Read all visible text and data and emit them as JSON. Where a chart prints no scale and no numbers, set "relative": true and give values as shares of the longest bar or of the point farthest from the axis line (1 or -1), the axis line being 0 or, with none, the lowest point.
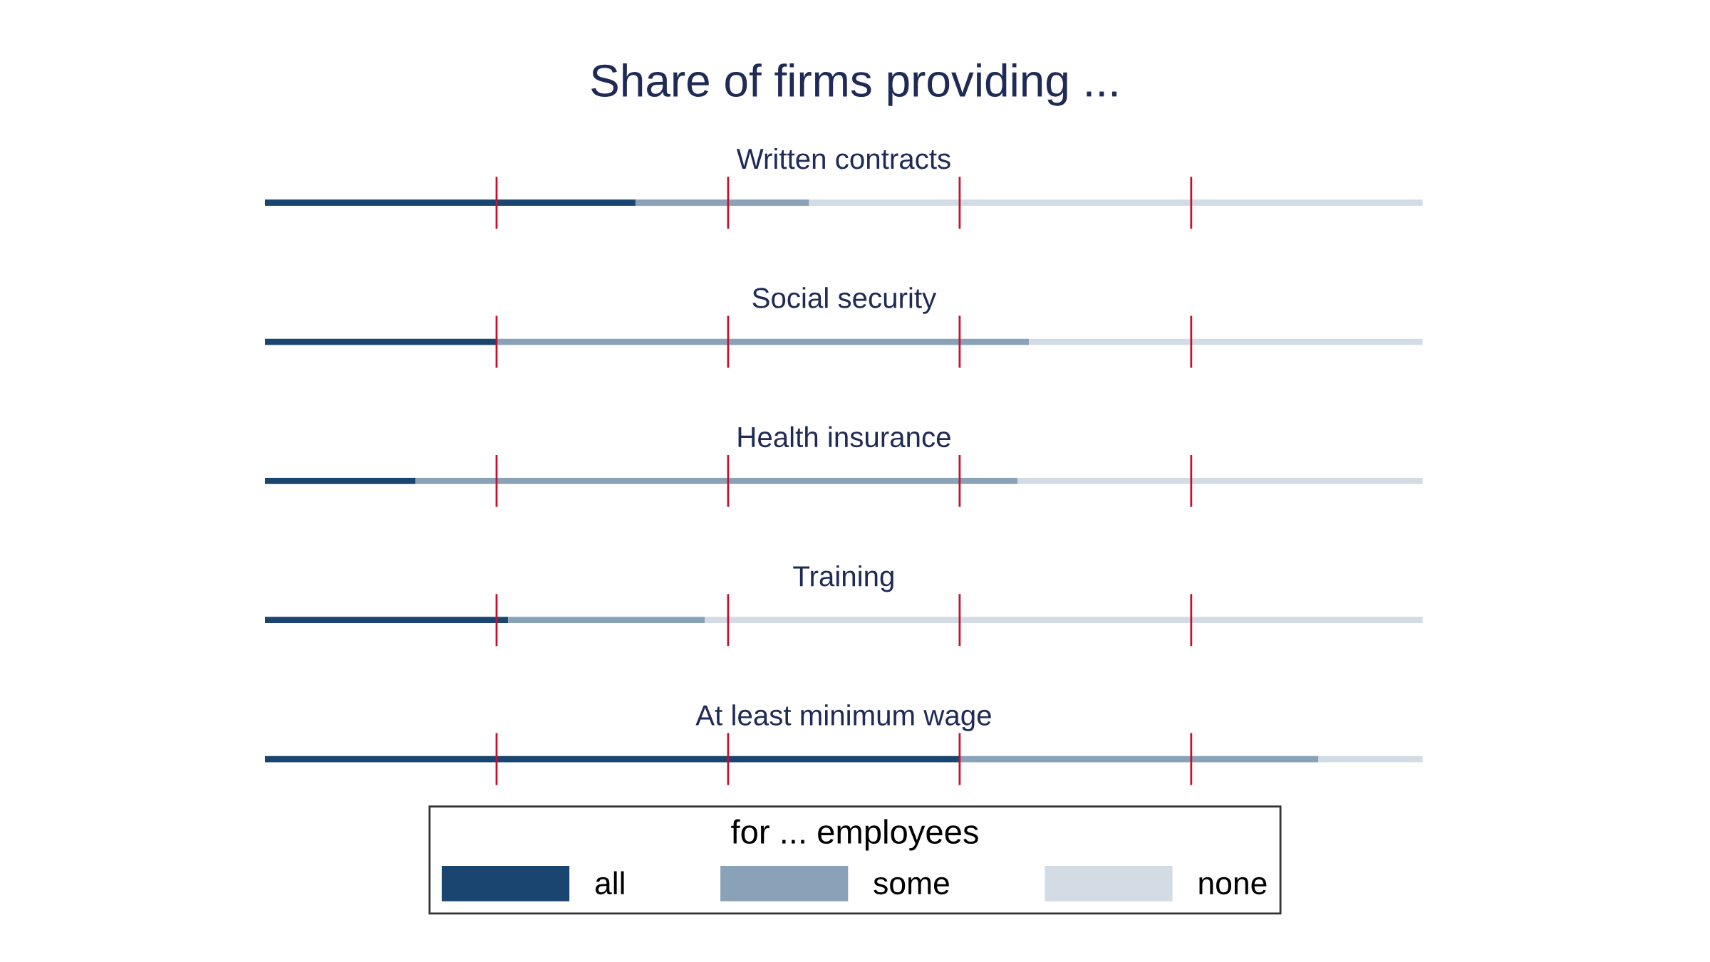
{
  "chart_data": [
    {
      "type": "bar",
      "title": "Share of firms providing ...",
      "subtitle": "Written contracts",
      "orientation": "horizontal",
      "stacked": true,
      "relative": true,
      "categories": [
        null
      ],
      "series": [
        {
          "color": "#1a4570",
          "values": [
            0.32
          ]
        },
        {
          "color": "#8aa2b8",
          "values": [
            0.15
          ]
        },
        {
          "color": "#d3dce5",
          "values": [
            0.53
          ]
        }
      ],
      "ref_lines": [
        {
          "axis": "x",
          "value": 0.2,
          "color": "#c8102e"
        },
        {
          "axis": "x",
          "value": 0.4,
          "color": "#c8102e"
        },
        {
          "axis": "x",
          "value": 0.6,
          "color": "#c8102e"
        },
        {
          "axis": "x",
          "value": 0.8,
          "color": "#c8102e"
        }
      ]
    },
    {
      "type": "bar",
      "title": "Social security",
      "orientation": "horizontal",
      "stacked": true,
      "relative": true,
      "categories": [
        null
      ],
      "series": [
        {
          "color": "#1a4570",
          "values": [
            0.2
          ]
        },
        {
          "color": "#8aa2b8",
          "values": [
            0.46
          ]
        },
        {
          "color": "#d3dce5",
          "values": [
            0.34
          ]
        }
      ],
      "ref_lines": [
        {
          "axis": "x",
          "value": 0.2,
          "color": "#c8102e"
        },
        {
          "axis": "x",
          "value": 0.4,
          "color": "#c8102e"
        },
        {
          "axis": "x",
          "value": 0.6,
          "color": "#c8102e"
        },
        {
          "axis": "x",
          "value": 0.8,
          "color": "#c8102e"
        }
      ]
    },
    {
      "type": "bar",
      "title": "Health insurance",
      "orientation": "horizontal",
      "stacked": true,
      "relative": true,
      "categories": [
        null
      ],
      "series": [
        {
          "color": "#1a4570",
          "values": [
            0.13
          ]
        },
        {
          "color": "#8aa2b8",
          "values": [
            0.52
          ]
        },
        {
          "color": "#d3dce5",
          "values": [
            0.35
          ]
        }
      ],
      "ref_lines": [
        {
          "axis": "x",
          "value": 0.2,
          "color": "#c8102e"
        },
        {
          "axis": "x",
          "value": 0.4,
          "color": "#c8102e"
        },
        {
          "axis": "x",
          "value": 0.6,
          "color": "#c8102e"
        },
        {
          "axis": "x",
          "value": 0.8,
          "color": "#c8102e"
        }
      ]
    },
    {
      "type": "bar",
      "title": "Training",
      "orientation": "horizontal",
      "stacked": true,
      "relative": true,
      "categories": [
        null
      ],
      "series": [
        {
          "color": "#1a4570",
          "values": [
            0.21
          ]
        },
        {
          "color": "#8aa2b8",
          "values": [
            0.17
          ]
        },
        {
          "color": "#d3dce5",
          "values": [
            0.62
          ]
        }
      ],
      "ref_lines": [
        {
          "axis": "x",
          "value": 0.2,
          "color": "#c8102e"
        },
        {
          "axis": "x",
          "value": 0.4,
          "color": "#c8102e"
        },
        {
          "axis": "x",
          "value": 0.6,
          "color": "#c8102e"
        },
        {
          "axis": "x",
          "value": 0.8,
          "color": "#c8102e"
        }
      ]
    },
    {
      "type": "bar",
      "title": "At least minimum wage",
      "orientation": "horizontal",
      "stacked": true,
      "relative": true,
      "categories": [
        null
      ],
      "legend": "bottom",
      "legend_title": "for ... employees",
      "series": [
        {
          "name": "all",
          "color": "#1a4570",
          "values": [
            0.6
          ]
        },
        {
          "name": "some",
          "color": "#8aa2b8",
          "values": [
            0.31
          ]
        },
        {
          "name": "none",
          "color": "#d3dce5",
          "values": [
            0.09
          ]
        }
      ],
      "ref_lines": [
        {
          "axis": "x",
          "value": 0.2,
          "color": "#c8102e"
        },
        {
          "axis": "x",
          "value": 0.4,
          "color": "#c8102e"
        },
        {
          "axis": "x",
          "value": 0.6,
          "color": "#c8102e"
        },
        {
          "axis": "x",
          "value": 0.8,
          "color": "#c8102e"
        }
      ]
    }
  ]
}
